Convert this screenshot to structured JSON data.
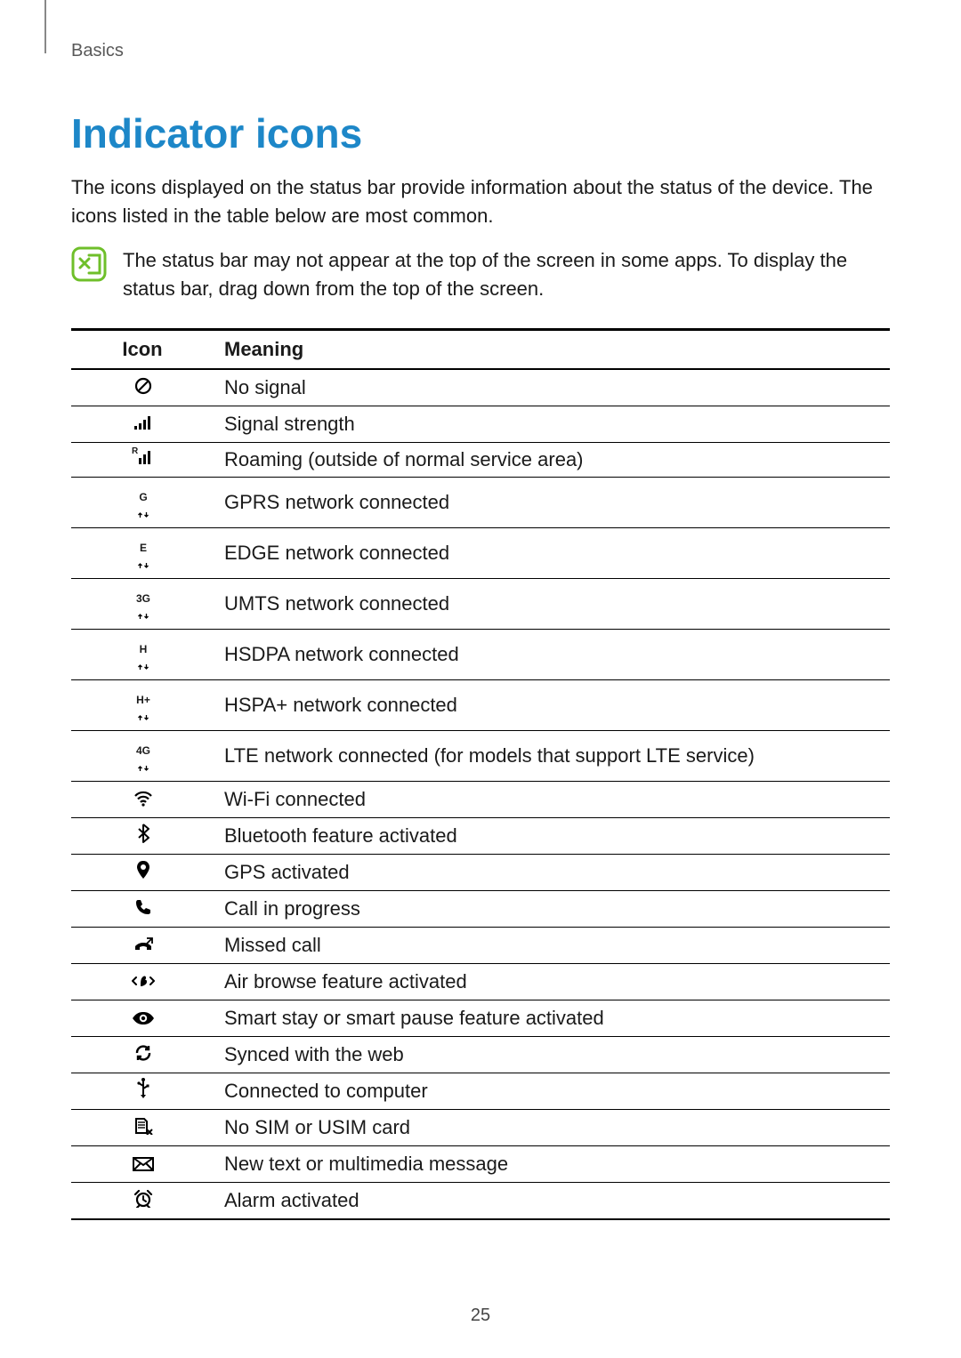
{
  "breadcrumb": "Basics",
  "title": "Indicator icons",
  "intro": "The icons displayed on the status bar provide information about the status of the device. The icons listed in the table below are most common.",
  "note": "The status bar may not appear at the top of the screen in some apps. To display the status bar, drag down from the top of the screen.",
  "table": {
    "columns": [
      "Icon",
      "Meaning"
    ],
    "rows": [
      {
        "icon": "no-signal",
        "meaning": "No signal"
      },
      {
        "icon": "signal",
        "meaning": "Signal strength"
      },
      {
        "icon": "roaming",
        "meaning": "Roaming (outside of normal service area)",
        "net_label": "R"
      },
      {
        "icon": "net",
        "meaning": "GPRS network connected",
        "net_label": "G"
      },
      {
        "icon": "net",
        "meaning": "EDGE network connected",
        "net_label": "E"
      },
      {
        "icon": "net",
        "meaning": "UMTS network connected",
        "net_label": "3G"
      },
      {
        "icon": "net",
        "meaning": "HSDPA network connected",
        "net_label": "H"
      },
      {
        "icon": "net",
        "meaning": "HSPA+ network connected",
        "net_label": "H+"
      },
      {
        "icon": "net",
        "meaning": "LTE network connected (for models that support LTE service)",
        "net_label": "4G"
      },
      {
        "icon": "wifi",
        "meaning": "Wi-Fi connected"
      },
      {
        "icon": "bluetooth",
        "meaning": "Bluetooth feature activated"
      },
      {
        "icon": "gps",
        "meaning": "GPS activated"
      },
      {
        "icon": "call",
        "meaning": "Call in progress"
      },
      {
        "icon": "missed-call",
        "meaning": "Missed call"
      },
      {
        "icon": "air-browse",
        "meaning": "Air browse feature activated"
      },
      {
        "icon": "smart-stay",
        "meaning": "Smart stay or smart pause feature activated"
      },
      {
        "icon": "sync",
        "meaning": "Synced with the web"
      },
      {
        "icon": "usb",
        "meaning": "Connected to computer"
      },
      {
        "icon": "no-sim",
        "meaning": "No SIM or USIM card"
      },
      {
        "icon": "message",
        "meaning": "New text or multimedia message"
      },
      {
        "icon": "alarm",
        "meaning": "Alarm activated"
      }
    ]
  },
  "page_number": "25",
  "colors": {
    "title": "#1d87c8",
    "note_icon_stroke": "#6fbf2a",
    "text": "#1a1a1a",
    "breadcrumb": "#595959",
    "rule": "#000000"
  }
}
